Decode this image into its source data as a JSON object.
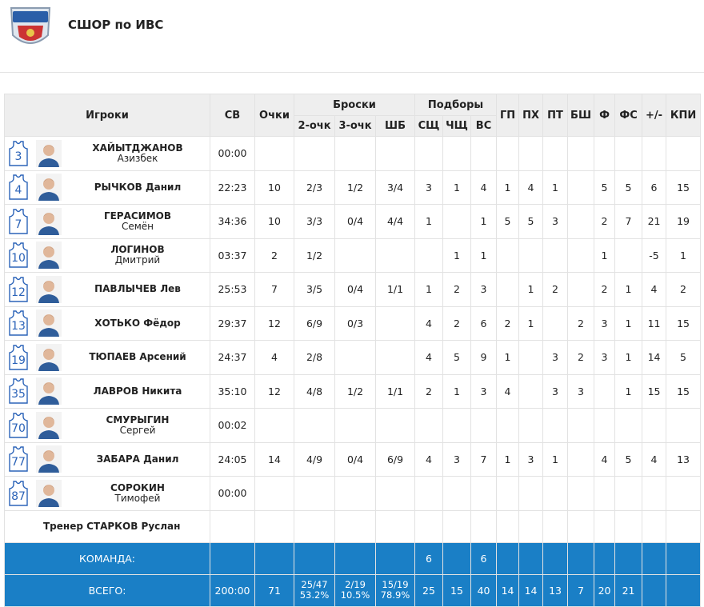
{
  "header": {
    "title": "СШОР по ИВС"
  },
  "table": {
    "columns": {
      "players": "Игроки",
      "time": "СВ",
      "points": "Очки",
      "shots": {
        "label": "Броски",
        "sub": [
          "2-очк",
          "3-очк",
          "ШБ"
        ]
      },
      "rebounds": {
        "label": "Подборы",
        "sub": [
          "СЩ",
          "ЧЩ",
          "ВС"
        ]
      },
      "rest": [
        "ГП",
        "ПХ",
        "ПТ",
        "БШ",
        "Ф",
        "ФС",
        "+/-",
        "КПИ"
      ]
    },
    "rows": [
      {
        "number": 3,
        "name": [
          "ХАЙЫТДЖАНОВ",
          "Азизбек"
        ],
        "stats": [
          "00:00",
          null,
          null,
          null,
          null,
          null,
          null,
          null,
          null,
          null,
          null,
          null,
          null,
          null,
          null,
          null
        ]
      },
      {
        "number": 4,
        "name": "РЫЧКОВ Данил",
        "stats": [
          "22:23",
          10,
          "2/3",
          "1/2",
          "3/4",
          3,
          1,
          4,
          1,
          4,
          1,
          null,
          5,
          5,
          6,
          15
        ]
      },
      {
        "number": 7,
        "name": [
          "ГЕРАСИМОВ",
          "Семён"
        ],
        "stats": [
          "34:36",
          10,
          "3/3",
          "0/4",
          "4/4",
          1,
          null,
          1,
          5,
          5,
          3,
          null,
          2,
          7,
          21,
          19
        ]
      },
      {
        "number": 10,
        "name": [
          "ЛОГИНОВ",
          "Дмитрий"
        ],
        "stats": [
          "03:37",
          2,
          "1/2",
          null,
          null,
          null,
          1,
          1,
          null,
          null,
          null,
          null,
          1,
          null,
          -5,
          1
        ]
      },
      {
        "number": 12,
        "name": "ПАВЛЫЧЕВ Лев",
        "stats": [
          "25:53",
          7,
          "3/5",
          "0/4",
          "1/1",
          1,
          2,
          3,
          null,
          1,
          2,
          null,
          2,
          1,
          4,
          2
        ]
      },
      {
        "number": 13,
        "name": "ХОТЬКО Фёдор",
        "stats": [
          "29:37",
          12,
          "6/9",
          "0/3",
          null,
          4,
          2,
          6,
          2,
          1,
          null,
          2,
          3,
          1,
          11,
          15
        ]
      },
      {
        "number": 19,
        "name": "ТЮПАЕВ Арсений",
        "stats": [
          "24:37",
          4,
          "2/8",
          null,
          null,
          4,
          5,
          9,
          1,
          null,
          3,
          2,
          3,
          1,
          14,
          5
        ]
      },
      {
        "number": 35,
        "name": "ЛАВРОВ Никита",
        "stats": [
          "35:10",
          12,
          "4/8",
          "1/2",
          "1/1",
          2,
          1,
          3,
          4,
          null,
          3,
          3,
          null,
          1,
          15,
          15
        ]
      },
      {
        "number": 70,
        "name": [
          "СМУРЫГИН",
          "Сергей"
        ],
        "stats": [
          "00:02",
          null,
          null,
          null,
          null,
          null,
          null,
          null,
          null,
          null,
          null,
          null,
          null,
          null,
          null,
          null
        ]
      },
      {
        "number": 77,
        "name": "ЗАБАРА Данил",
        "stats": [
          "24:05",
          14,
          "4/9",
          "0/4",
          "6/9",
          4,
          3,
          7,
          1,
          3,
          1,
          null,
          4,
          5,
          4,
          13
        ]
      },
      {
        "number": 87,
        "name": [
          "СОРОКИН",
          "Тимофей"
        ],
        "stats": [
          "00:00",
          null,
          null,
          null,
          null,
          null,
          null,
          null,
          null,
          null,
          null,
          null,
          null,
          null,
          null,
          null
        ]
      }
    ],
    "coach": "Тренер СТАРКОВ Руслан",
    "team": {
      "label": "КОМАНДА:",
      "stats": [
        null,
        null,
        null,
        null,
        null,
        6,
        null,
        6,
        null,
        null,
        null,
        null,
        null,
        null,
        null,
        null
      ]
    },
    "total": {
      "label": "ВСЕГО:",
      "stats": [
        "200:00",
        71,
        "25/47",
        "2/19",
        "15/19",
        25,
        15,
        40,
        14,
        14,
        13,
        7,
        20,
        21,
        null,
        null
      ],
      "percents": [
        null,
        null,
        "53.2%",
        "10.5%",
        "78.9%",
        null,
        null,
        null,
        null,
        null,
        null,
        null,
        null,
        null,
        null,
        null
      ]
    }
  }
}
